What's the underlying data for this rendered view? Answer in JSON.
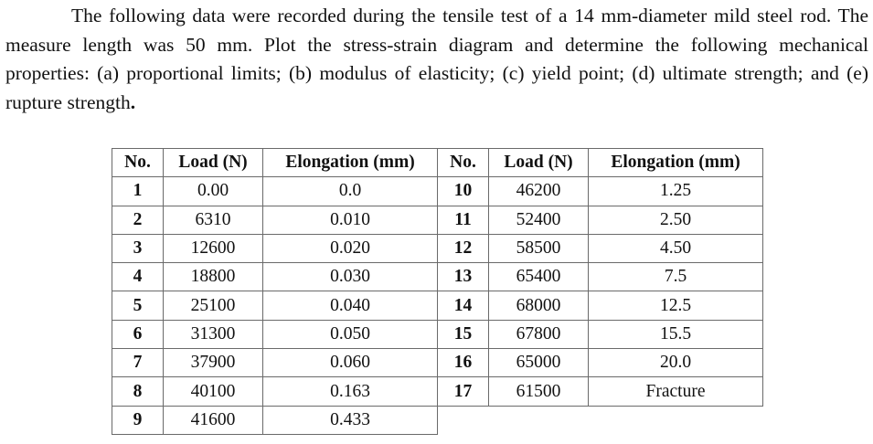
{
  "problem": {
    "text_part1": "The following data were recorded during the tensile test of a 14 mm-diameter mild steel rod. The measure length was 50 mm. Plot the stress-strain diagram and determine the following mechanical properties: (a) proportional limits; (b) modulus of elasticity; (c) yield point; (d) ultimate strength; and (e) rupture strength",
    "text_end": "."
  },
  "table": {
    "headers": [
      "No.",
      "Load (N)",
      "Elongation (mm)",
      "No.",
      "Load (N)",
      "Elongation (mm)"
    ],
    "rows": [
      {
        "left": {
          "no": "1",
          "load": "0.00",
          "elong": "0.0"
        },
        "right": {
          "no": "10",
          "load": "46200",
          "elong": "1.25"
        }
      },
      {
        "left": {
          "no": "2",
          "load": "6310",
          "elong": "0.010"
        },
        "right": {
          "no": "11",
          "load": "52400",
          "elong": "2.50"
        }
      },
      {
        "left": {
          "no": "3",
          "load": "12600",
          "elong": "0.020"
        },
        "right": {
          "no": "12",
          "load": "58500",
          "elong": "4.50"
        }
      },
      {
        "left": {
          "no": "4",
          "load": "18800",
          "elong": "0.030"
        },
        "right": {
          "no": "13",
          "load": "65400",
          "elong": "7.5"
        }
      },
      {
        "left": {
          "no": "5",
          "load": "25100",
          "elong": "0.040"
        },
        "right": {
          "no": "14",
          "load": "68000",
          "elong": "12.5"
        }
      },
      {
        "left": {
          "no": "6",
          "load": "31300",
          "elong": "0.050"
        },
        "right": {
          "no": "15",
          "load": "67800",
          "elong": "15.5"
        }
      },
      {
        "left": {
          "no": "7",
          "load": "37900",
          "elong": "0.060"
        },
        "right": {
          "no": "16",
          "load": "65000",
          "elong": "20.0"
        }
      },
      {
        "left": {
          "no": "8",
          "load": "40100",
          "elong": "0.163"
        },
        "right": {
          "no": "17",
          "load": "61500",
          "elong": "Fracture"
        }
      },
      {
        "left": {
          "no": "9",
          "load": "41600",
          "elong": "0.433"
        }
      }
    ]
  }
}
